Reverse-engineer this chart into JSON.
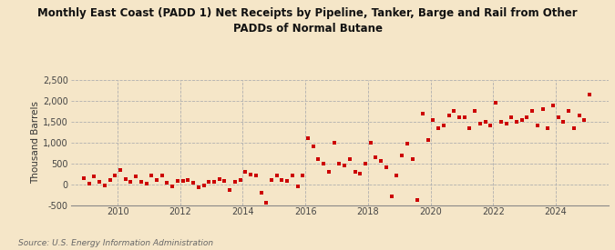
{
  "title": "Monthly East Coast (PADD 1) Net Receipts by Pipeline, Tanker, Barge and Rail from Other\nPADDs of Normal Butane",
  "ylabel": "Thousand Barrels",
  "source": "Source: U.S. Energy Information Administration",
  "background_color": "#f5e6c8",
  "marker_color": "#cc0000",
  "ylim": [
    -500,
    2500
  ],
  "yticks": [
    -500,
    0,
    500,
    1000,
    1500,
    2000,
    2500
  ],
  "xlim_start": 2008.5,
  "xlim_end": 2025.7,
  "xticks": [
    2010,
    2012,
    2014,
    2016,
    2018,
    2020,
    2022,
    2024
  ],
  "dates": [
    2008.917,
    2009.083,
    2009.25,
    2009.417,
    2009.583,
    2009.75,
    2009.917,
    2010.083,
    2010.25,
    2010.417,
    2010.583,
    2010.75,
    2010.917,
    2011.083,
    2011.25,
    2011.417,
    2011.583,
    2011.75,
    2011.917,
    2012.083,
    2012.25,
    2012.417,
    2012.583,
    2012.75,
    2012.917,
    2013.083,
    2013.25,
    2013.417,
    2013.583,
    2013.75,
    2013.917,
    2014.083,
    2014.25,
    2014.417,
    2014.583,
    2014.75,
    2014.917,
    2015.083,
    2015.25,
    2015.417,
    2015.583,
    2015.75,
    2015.917,
    2016.083,
    2016.25,
    2016.417,
    2016.583,
    2016.75,
    2016.917,
    2017.083,
    2017.25,
    2017.417,
    2017.583,
    2017.75,
    2017.917,
    2018.083,
    2018.25,
    2018.417,
    2018.583,
    2018.75,
    2018.917,
    2019.083,
    2019.25,
    2019.417,
    2019.583,
    2019.75,
    2019.917,
    2020.083,
    2020.25,
    2020.417,
    2020.583,
    2020.75,
    2020.917,
    2021.083,
    2021.25,
    2021.417,
    2021.583,
    2021.75,
    2021.917,
    2022.083,
    2022.25,
    2022.417,
    2022.583,
    2022.75,
    2022.917,
    2023.083,
    2023.25,
    2023.417,
    2023.583,
    2023.75,
    2023.917,
    2024.083,
    2024.25,
    2024.417,
    2024.583,
    2024.75,
    2024.917,
    2025.083
  ],
  "values": [
    150,
    20,
    180,
    50,
    -30,
    100,
    200,
    350,
    120,
    50,
    180,
    50,
    10,
    200,
    100,
    200,
    30,
    -50,
    80,
    80,
    100,
    30,
    -80,
    -30,
    50,
    50,
    120,
    80,
    -150,
    50,
    100,
    300,
    230,
    200,
    -200,
    -450,
    100,
    200,
    100,
    80,
    200,
    -50,
    200,
    1100,
    900,
    600,
    500,
    300,
    1000,
    500,
    450,
    600,
    300,
    250,
    500,
    1000,
    650,
    550,
    400,
    -300,
    200,
    700,
    980,
    600,
    -380,
    1700,
    1050,
    1550,
    1350,
    1400,
    1650,
    1750,
    1600,
    1600,
    1350,
    1750,
    1450,
    1500,
    1400,
    1950,
    1500,
    1450,
    1600,
    1500,
    1550,
    1600,
    1750,
    1400,
    1800,
    1350,
    1900,
    1600,
    1500,
    1750,
    1350,
    1650,
    1550,
    2150
  ]
}
